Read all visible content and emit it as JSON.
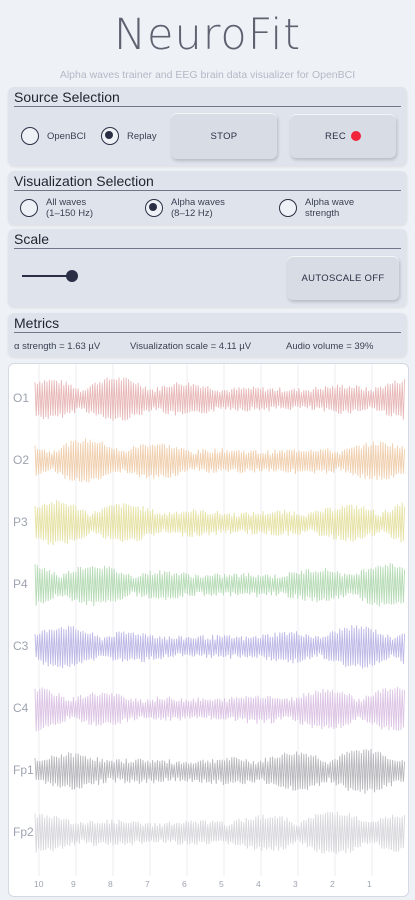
{
  "header": {
    "title": "NeuroFit",
    "subtitle": "Alpha waves trainer and EEG brain data visualizer for OpenBCI"
  },
  "source_selection": {
    "title": "Source Selection",
    "options": [
      {
        "label": "OpenBCI",
        "selected": false
      },
      {
        "label": "Replay",
        "selected": true
      }
    ],
    "stop_label": "STOP",
    "rec_label": "REC",
    "rec_color": "#f0253a"
  },
  "visualization_selection": {
    "title": "Visualization Selection",
    "options": [
      {
        "line1": "All waves",
        "line2": "(1–150 Hz)",
        "selected": false
      },
      {
        "line1": "Alpha waves",
        "line2": "(8–12 Hz)",
        "selected": true
      },
      {
        "line1": "Alpha wave",
        "line2": "strength",
        "selected": false
      }
    ]
  },
  "scale": {
    "title": "Scale",
    "slider_level": 0.2,
    "autoscale_label": "AUTOSCALE OFF"
  },
  "metrics": {
    "title": "Metrics",
    "alpha_strength": "α strength = 1.63 µV",
    "visualization_scale": "Visualization scale = 4.11 µV",
    "audio_volume": "Audio volume = 39%"
  },
  "chart_data": {
    "type": "line",
    "series": [
      {
        "name": "O1",
        "color": "#e8b8b8"
      },
      {
        "name": "O2",
        "color": "#f0cfae"
      },
      {
        "name": "P3",
        "color": "#e6e2a6"
      },
      {
        "name": "P4",
        "color": "#b6dbb6"
      },
      {
        "name": "C3",
        "color": "#bdb8e6"
      },
      {
        "name": "C4",
        "color": "#dcc4e4"
      },
      {
        "name": "Fp1",
        "color": "#b8b8bc"
      },
      {
        "name": "Fp2",
        "color": "#d8d8dc"
      }
    ],
    "x_ticks": [
      "10",
      "9",
      "8",
      "7",
      "6",
      "5",
      "4",
      "3",
      "2",
      "1"
    ],
    "grid": true
  }
}
